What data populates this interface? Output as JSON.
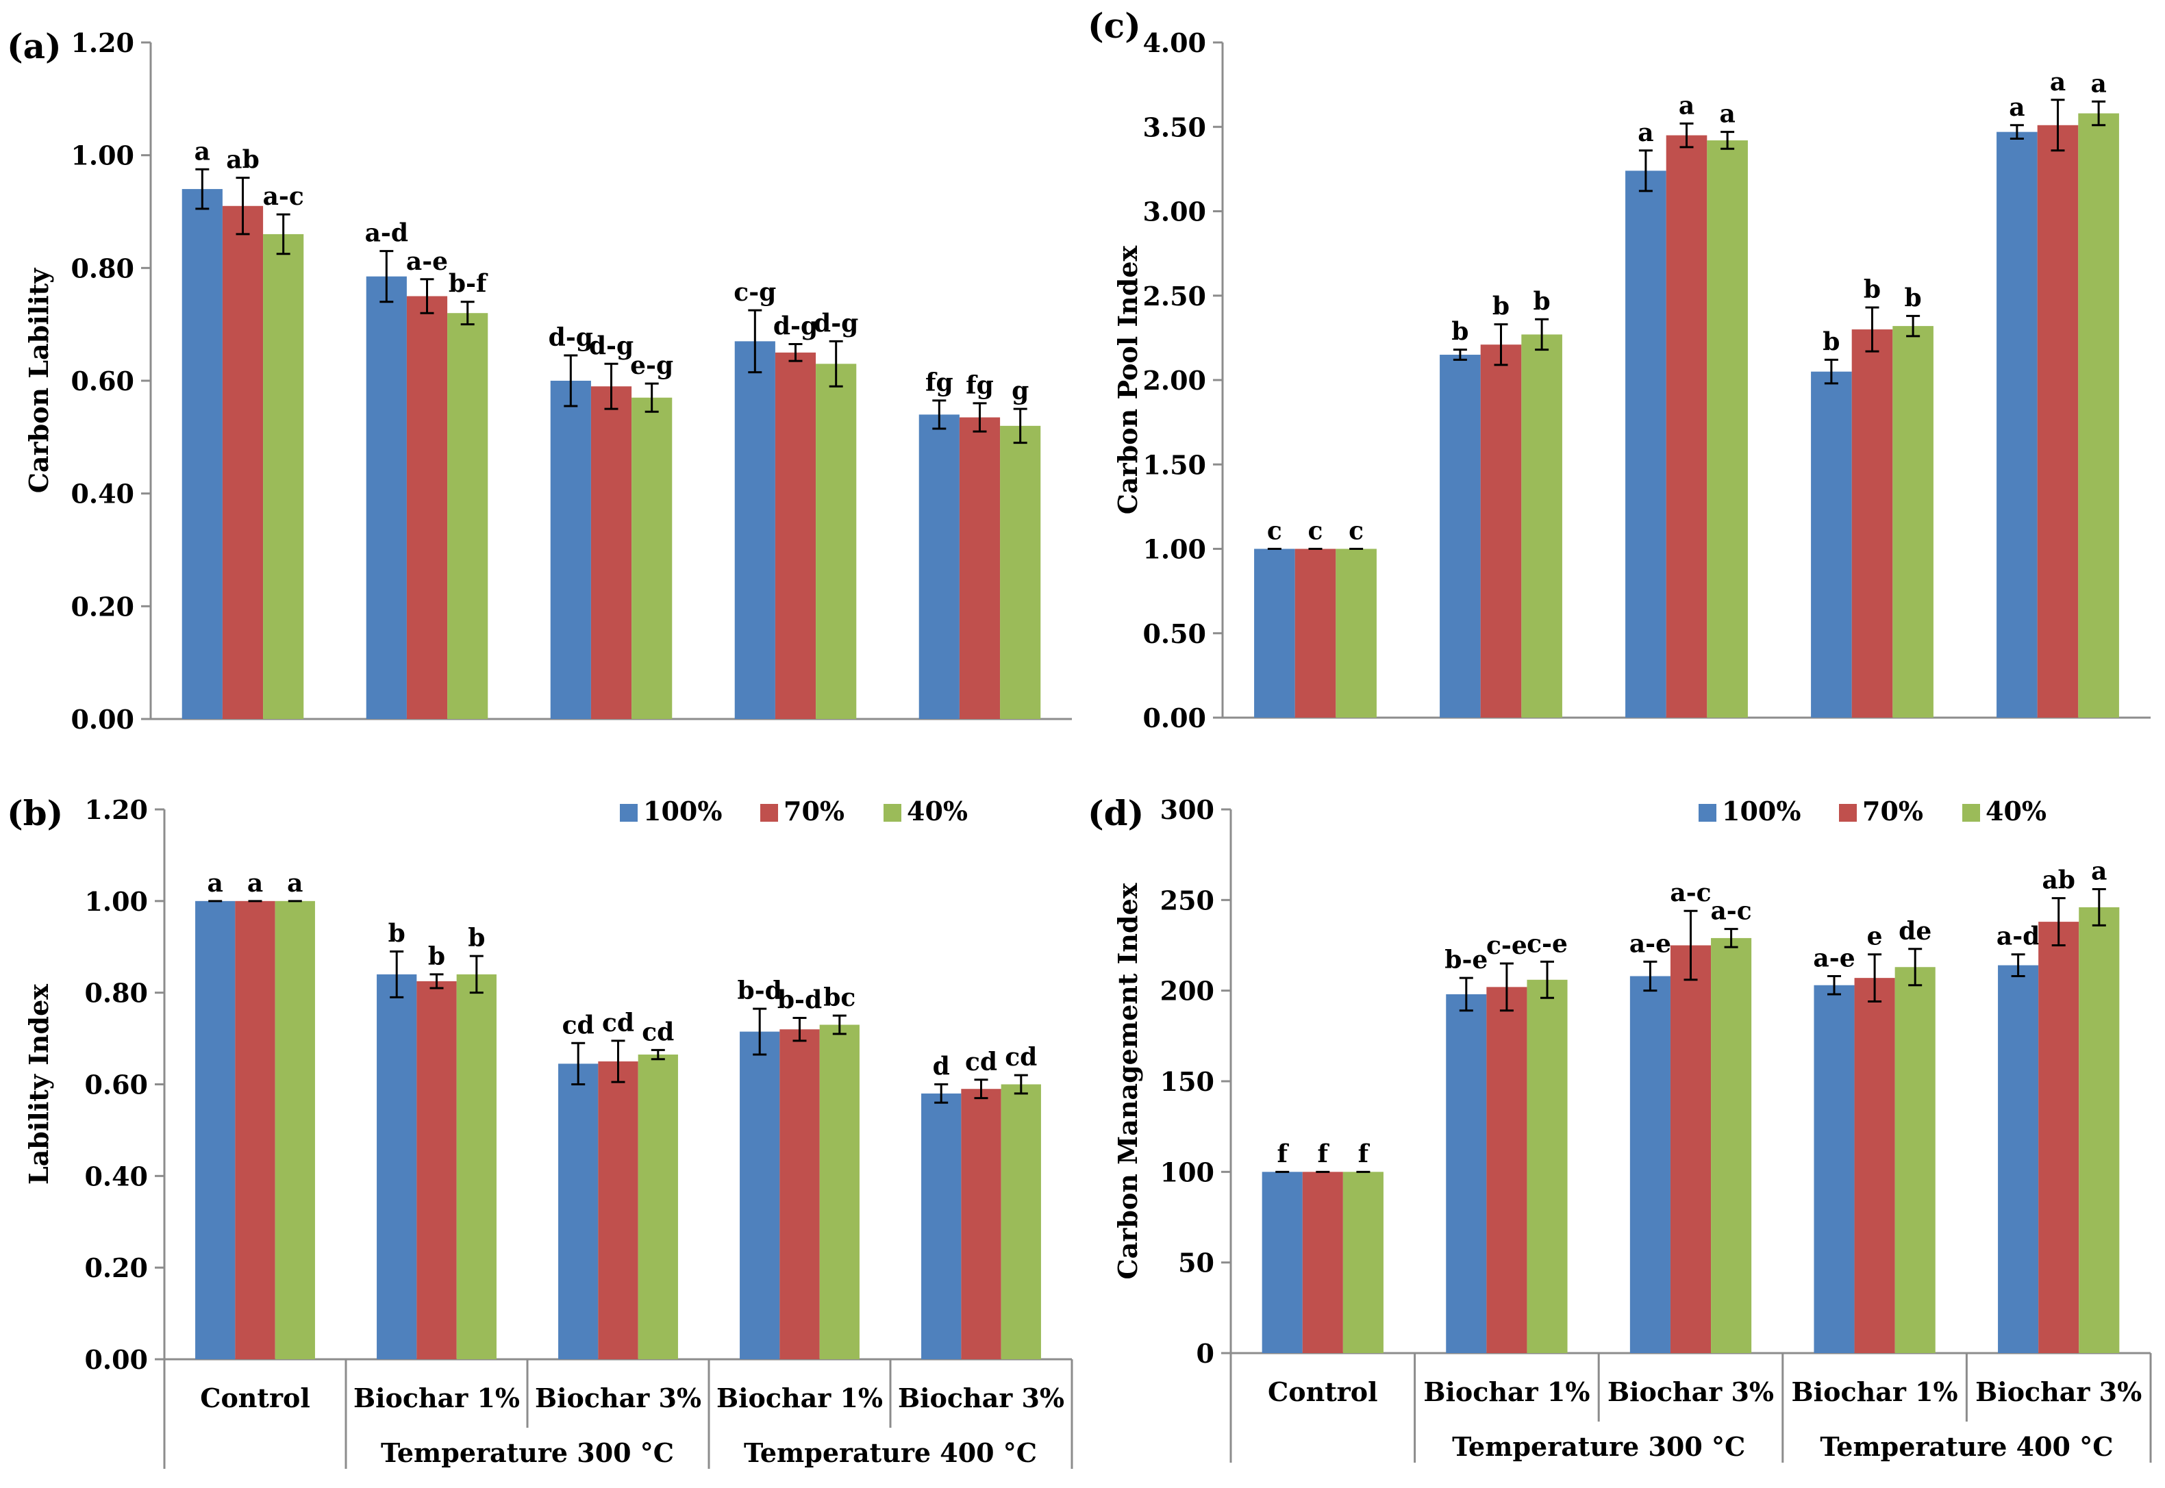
{
  "colors": {
    "s100": "#4f81bd",
    "s70": "#c0504d",
    "s40": "#9bbb59"
  },
  "chart_data": [
    {
      "panel": "(a)",
      "type": "bar",
      "ylabel": "Carbon Lability",
      "ylim": [
        0,
        1.2
      ],
      "yticks": [
        "0.00",
        "0.20",
        "0.40",
        "0.60",
        "0.80",
        "1.00",
        "1.20"
      ],
      "categories": [
        "Control",
        "Biochar 1%",
        "Biochar 3%",
        "Biochar 1%",
        "Biochar 3%"
      ],
      "groups": [
        "Temperature 300 °C",
        "Temperature 400 °C"
      ],
      "legend": "none",
      "series": [
        {
          "values": [
            0.94,
            0.785,
            0.6,
            0.67,
            0.54
          ],
          "errors": [
            0.035,
            0.045,
            0.045,
            0.055,
            0.025
          ],
          "letters": [
            "a",
            "a-d",
            "d-g",
            "c-g",
            "fg"
          ]
        },
        {
          "values": [
            0.91,
            0.75,
            0.59,
            0.65,
            0.535
          ],
          "errors": [
            0.05,
            0.03,
            0.04,
            0.015,
            0.025
          ],
          "letters": [
            "ab",
            "a-e",
            "d-g",
            "d-g",
            "fg"
          ]
        },
        {
          "values": [
            0.86,
            0.72,
            0.57,
            0.63,
            0.52
          ],
          "errors": [
            0.035,
            0.02,
            0.025,
            0.04,
            0.03
          ],
          "letters": [
            "a-c",
            "b-f",
            "e-g",
            "d-g",
            "g"
          ]
        }
      ]
    },
    {
      "panel": "(b)",
      "type": "bar",
      "ylabel": "Lability Index",
      "ylim": [
        0,
        1.2
      ],
      "yticks": [
        "0.00",
        "0.20",
        "0.40",
        "0.60",
        "0.80",
        "1.00",
        "1.20"
      ],
      "categories": [
        "Control",
        "Biochar 1%",
        "Biochar 3%",
        "Biochar 1%",
        "Biochar 3%"
      ],
      "groups": [
        "Temperature 300 °C",
        "Temperature 400 °C"
      ],
      "legend": "top-right",
      "series": [
        {
          "name": "100%",
          "values": [
            1.0,
            0.84,
            0.645,
            0.715,
            0.58
          ],
          "errors": [
            0.0,
            0.05,
            0.045,
            0.05,
            0.02
          ],
          "letters": [
            "a",
            "b",
            "cd",
            "b-d",
            "d"
          ]
        },
        {
          "name": "70%",
          "values": [
            1.0,
            0.825,
            0.65,
            0.72,
            0.59
          ],
          "errors": [
            0.0,
            0.015,
            0.045,
            0.025,
            0.02
          ],
          "letters": [
            "a",
            "b",
            "cd",
            "b-d",
            "cd"
          ]
        },
        {
          "name": "40%",
          "values": [
            1.0,
            0.84,
            0.665,
            0.73,
            0.6
          ],
          "errors": [
            0.0,
            0.04,
            0.01,
            0.02,
            0.02
          ],
          "letters": [
            "a",
            "b",
            "cd",
            "bc",
            "cd"
          ]
        }
      ]
    },
    {
      "panel": "(c)",
      "type": "bar",
      "ylabel": "Carbon Pool Index",
      "ylim": [
        0,
        4.0
      ],
      "yticks": [
        "0.00",
        "0.50",
        "1.00",
        "1.50",
        "2.00",
        "2.50",
        "3.00",
        "3.50",
        "4.00"
      ],
      "categories": [
        "Control",
        "Biochar 1%",
        "Biochar 3%",
        "Biochar 1%",
        "Biochar 3%"
      ],
      "groups": [
        "Temperature 300 °C",
        "Temperature 400 °C"
      ],
      "legend": "none",
      "series": [
        {
          "values": [
            1.0,
            2.15,
            3.24,
            2.05,
            3.47
          ],
          "errors": [
            0.0,
            0.03,
            0.12,
            0.07,
            0.04
          ],
          "letters": [
            "c",
            "b",
            "a",
            "b",
            "a"
          ]
        },
        {
          "values": [
            1.0,
            2.21,
            3.45,
            2.3,
            3.51
          ],
          "errors": [
            0.0,
            0.12,
            0.07,
            0.13,
            0.15
          ],
          "letters": [
            "c",
            "b",
            "a",
            "b",
            "a"
          ]
        },
        {
          "values": [
            1.0,
            2.27,
            3.42,
            2.32,
            3.58
          ],
          "errors": [
            0.0,
            0.09,
            0.05,
            0.06,
            0.07
          ],
          "letters": [
            "c",
            "b",
            "a",
            "b",
            "a"
          ]
        }
      ]
    },
    {
      "panel": "(d)",
      "type": "bar",
      "ylabel": "Carbon Management Index",
      "ylim": [
        0,
        300
      ],
      "yticks": [
        "0",
        "50",
        "100",
        "150",
        "200",
        "250",
        "300"
      ],
      "categories": [
        "Control",
        "Biochar 1%",
        "Biochar 3%",
        "Biochar 1%",
        "Biochar 3%"
      ],
      "groups": [
        "Temperature 300 °C",
        "Temperature 400 °C"
      ],
      "legend": "top-right",
      "series": [
        {
          "name": "100%",
          "values": [
            100,
            198,
            208,
            203,
            214
          ],
          "errors": [
            0,
            9,
            8,
            5,
            6
          ],
          "letters": [
            "f",
            "b-e",
            "a-e",
            "a-e",
            "a-d"
          ]
        },
        {
          "name": "70%",
          "values": [
            100,
            202,
            225,
            207,
            238
          ],
          "errors": [
            0,
            13,
            19,
            13,
            13
          ],
          "letters": [
            "f",
            "c-e",
            "a-c",
            "e",
            "ab"
          ]
        },
        {
          "name": "40%",
          "values": [
            100,
            206,
            229,
            213,
            246
          ],
          "errors": [
            0,
            10,
            5,
            10,
            10
          ],
          "letters": [
            "f",
            "c-e",
            "a-c",
            "de",
            "a"
          ]
        }
      ]
    }
  ]
}
